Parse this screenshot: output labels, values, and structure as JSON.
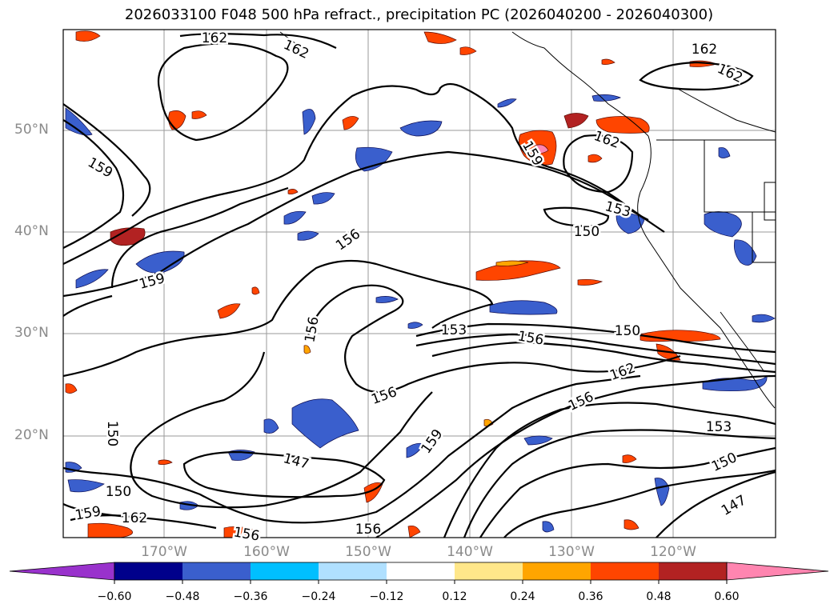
{
  "title": "2026033100 F048 500 hPa refract., precipitation PC (2026040200 - 2026040300)",
  "lat_labels": [
    "50°N",
    "40°N",
    "30°N",
    "20°N"
  ],
  "lon_labels": [
    "170°W",
    "160°W",
    "150°W",
    "140°W",
    "130°W",
    "120°W"
  ],
  "contour_labels": [
    "162",
    "162",
    "162",
    "162",
    "162",
    "159",
    "159",
    "159",
    "156",
    "153",
    "150",
    "156",
    "153",
    "156",
    "150",
    "162",
    "156",
    "156",
    "153",
    "150",
    "147",
    "159",
    "150",
    "162",
    "159",
    "150",
    "147",
    "156",
    "156"
  ],
  "colorbar": {
    "ticks": [
      "−0.60",
      "−0.48",
      "−0.36",
      "−0.24",
      "−0.12",
      "0.12",
      "0.24",
      "0.36",
      "0.48",
      "0.60"
    ],
    "colors": [
      "#9932cc",
      "#00008b",
      "#3a5fcd",
      "#00bfff",
      "#b0e0ff",
      "#ffffff",
      "#ffe78a",
      "#ffa500",
      "#ff4500",
      "#b22222",
      "#ff85b0"
    ]
  }
}
